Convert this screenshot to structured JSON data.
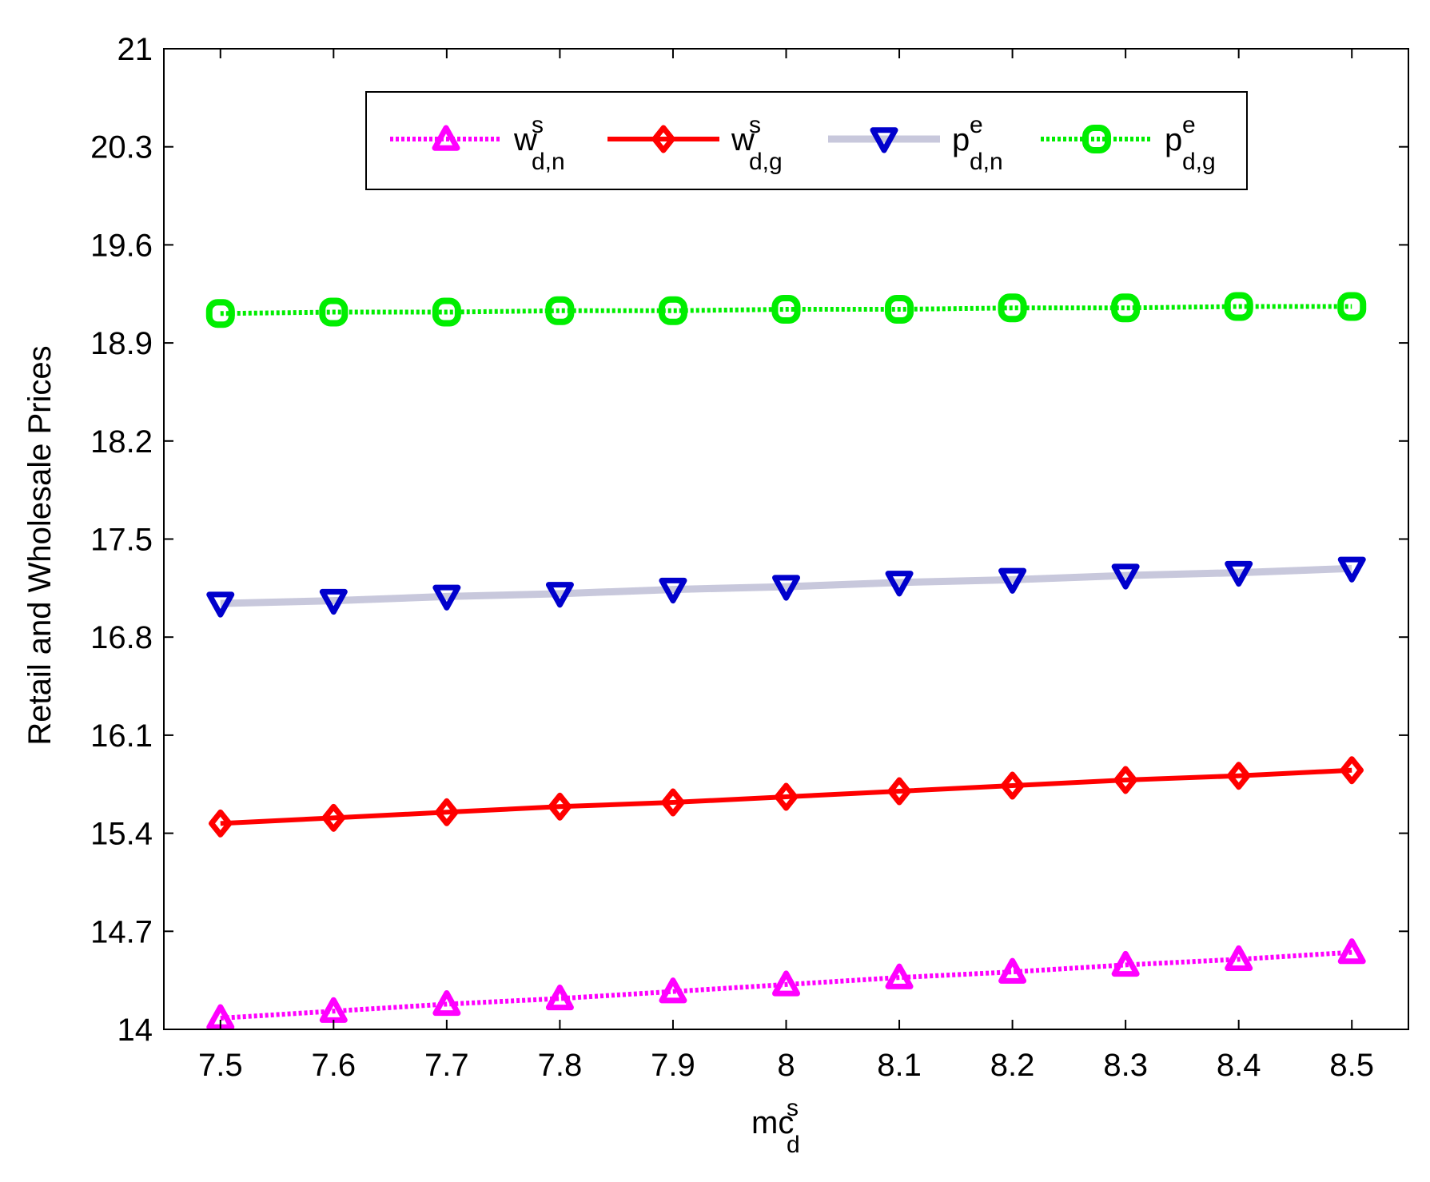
{
  "chart_data": {
    "type": "line",
    "x": [
      7.5,
      7.6,
      7.7,
      7.8,
      7.9,
      8.0,
      8.1,
      8.2,
      8.3,
      8.4,
      8.5
    ],
    "x_tick_labels": [
      "7.5",
      "7.6",
      "7.7",
      "7.8",
      "7.9",
      "8",
      "8.1",
      "8.2",
      "8.3",
      "8.4",
      "8.5"
    ],
    "y_ticks": [
      14,
      14.7,
      15.4,
      16.1,
      16.8,
      17.5,
      18.2,
      18.9,
      19.6,
      20.3,
      21
    ],
    "y_tick_labels": [
      "14",
      "14.7",
      "15.4",
      "16.1",
      "16.8",
      "17.5",
      "18.2",
      "18.9",
      "19.6",
      "20.3",
      "21"
    ],
    "xlim": [
      7.45,
      8.55
    ],
    "ylim": [
      14,
      21
    ],
    "xlabel": {
      "base": "mc",
      "sup": "s",
      "sub": "d"
    },
    "ylabel": "Retail and Wholesale Prices",
    "grid": false,
    "legend_position": "top-center",
    "series": [
      {
        "name": {
          "base": "w",
          "sup": "s",
          "sub": "d,n"
        },
        "color": "#ff00ff",
        "line_style": "dotted",
        "marker": "triangle-up",
        "values": [
          14.08,
          14.13,
          14.18,
          14.22,
          14.27,
          14.32,
          14.37,
          14.41,
          14.46,
          14.5,
          14.55
        ]
      },
      {
        "name": {
          "base": "w",
          "sup": "s",
          "sub": "d,g"
        },
        "color": "#ff0000",
        "line_style": "solid",
        "marker": "diamond",
        "values": [
          15.47,
          15.51,
          15.55,
          15.59,
          15.62,
          15.66,
          15.7,
          15.74,
          15.78,
          15.81,
          15.85
        ]
      },
      {
        "name": {
          "base": "p",
          "sup": "e",
          "sub": "d,n"
        },
        "color": "#0000cc",
        "line_color": "#c8c8dc",
        "line_style": "solid",
        "marker": "triangle-down",
        "values": [
          17.04,
          17.06,
          17.09,
          17.11,
          17.14,
          17.16,
          17.19,
          17.21,
          17.24,
          17.26,
          17.29
        ]
      },
      {
        "name": {
          "base": "p",
          "sup": "e",
          "sub": "d,g"
        },
        "color": "#00ee00",
        "line_style": "dotted",
        "marker": "square-rounded",
        "values": [
          19.11,
          19.12,
          19.12,
          19.13,
          19.13,
          19.14,
          19.14,
          19.15,
          19.15,
          19.16,
          19.16
        ]
      }
    ]
  }
}
